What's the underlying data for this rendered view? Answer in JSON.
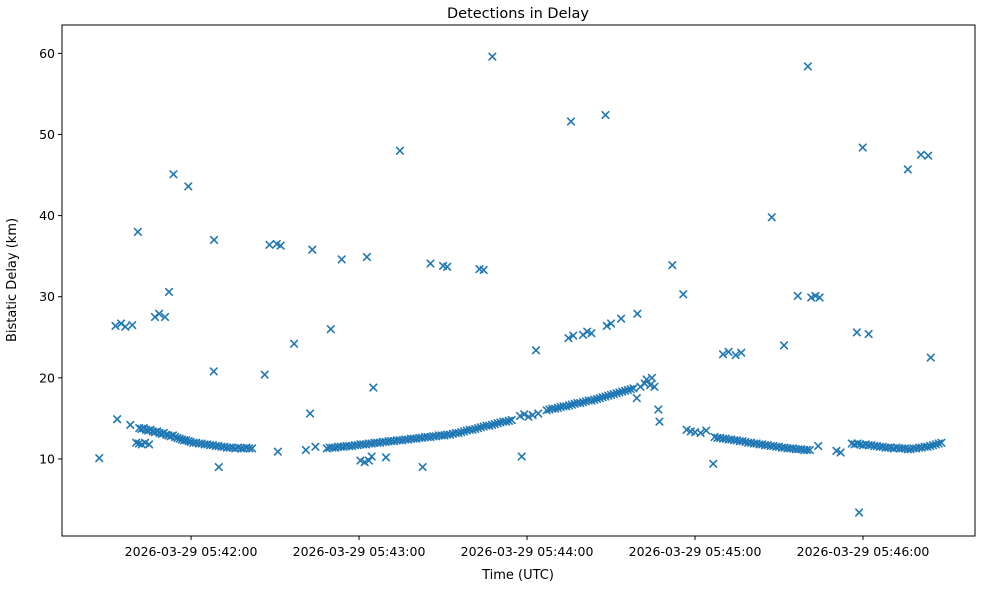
{
  "chart_data": {
    "type": "scatter",
    "title": "Detections in Delay",
    "xlabel": "Time (UTC)",
    "ylabel": "Bistatic Delay (km)",
    "marker": "x",
    "marker_color": "#1f77b4",
    "background_color": "#ffffff",
    "grid": false,
    "legend": false,
    "x_axis": {
      "tick_labels": [
        "2026-03-29 05:42:00",
        "2026-03-29 05:43:00",
        "2026-03-29 05:44:00",
        "2026-03-29 05:45:00",
        "2026-03-29 05:46:00"
      ],
      "tick_seconds": [
        0,
        60,
        120,
        180,
        240
      ],
      "range_seconds": [
        -46.1,
        280
      ],
      "units": "seconds relative to first labeled tick 2026-03-29 05:42:00"
    },
    "y_axis": {
      "ticks": [
        10,
        20,
        30,
        40,
        50,
        60
      ],
      "range": [
        0.5,
        63.5
      ]
    },
    "points": [
      [
        -18.5,
        13.8
      ],
      [
        -17.7,
        13.7
      ],
      [
        -16.9,
        13.8
      ],
      [
        -16.1,
        13.6
      ],
      [
        -15.3,
        13.5
      ],
      [
        -14.5,
        13.6
      ],
      [
        -13.7,
        13.4
      ],
      [
        -12.9,
        13.3
      ],
      [
        -12.1,
        13.4
      ],
      [
        -11.3,
        13.2
      ],
      [
        -10.5,
        13.1
      ],
      [
        -9.7,
        13.2
      ],
      [
        -8.9,
        13.0
      ],
      [
        -8.1,
        12.9
      ],
      [
        -7.3,
        12.8
      ],
      [
        -6.5,
        12.9
      ],
      [
        -5.7,
        12.7
      ],
      [
        -4.9,
        12.6
      ],
      [
        -4.1,
        12.5
      ],
      [
        -3.3,
        12.4
      ],
      [
        -2.5,
        12.3
      ],
      [
        -1.7,
        12.3
      ],
      [
        -0.9,
        12.2
      ],
      [
        -0.1,
        12.1
      ],
      [
        0.8,
        12.0
      ],
      [
        1.8,
        12.0
      ],
      [
        2.8,
        11.9
      ],
      [
        3.8,
        11.9
      ],
      [
        4.8,
        11.8
      ],
      [
        5.8,
        11.8
      ],
      [
        6.8,
        11.7
      ],
      [
        7.8,
        11.7
      ],
      [
        8.8,
        11.6
      ],
      [
        9.8,
        11.6
      ],
      [
        10.8,
        11.5
      ],
      [
        11.8,
        11.5
      ],
      [
        12.8,
        11.4
      ],
      [
        13.8,
        11.4
      ],
      [
        14.8,
        11.4
      ],
      [
        15.8,
        11.3
      ],
      [
        16.8,
        11.4
      ],
      [
        17.8,
        11.3
      ],
      [
        18.8,
        11.3
      ],
      [
        19.8,
        11.4
      ],
      [
        20.8,
        11.3
      ],
      [
        21.8,
        11.3
      ],
      [
        -19.6,
        12.0
      ],
      [
        -18.6,
        11.9
      ],
      [
        -17.6,
        11.8
      ],
      [
        -16.4,
        12.0
      ],
      [
        -15.0,
        11.8
      ],
      [
        31,
        10.9
      ],
      [
        41,
        11.1
      ],
      [
        44.4,
        11.5
      ],
      [
        48.5,
        11.3
      ],
      [
        49.5,
        11.4
      ],
      [
        50.5,
        11.4
      ],
      [
        51.5,
        11.4
      ],
      [
        52.5,
        11.5
      ],
      [
        53.5,
        11.5
      ],
      [
        54.5,
        11.5
      ],
      [
        55.5,
        11.6
      ],
      [
        56.5,
        11.6
      ],
      [
        57.5,
        11.6
      ],
      [
        58.5,
        11.7
      ],
      [
        59.5,
        11.7
      ],
      [
        60.5,
        11.8
      ],
      [
        61.5,
        11.8
      ],
      [
        62.5,
        11.8
      ],
      [
        63.5,
        11.9
      ],
      [
        64.5,
        11.9
      ],
      [
        65.5,
        12.0
      ],
      [
        66.5,
        12.0
      ],
      [
        67.5,
        12.0
      ],
      [
        68.5,
        12.1
      ],
      [
        69.5,
        12.1
      ],
      [
        70.5,
        12.2
      ],
      [
        71.5,
        12.2
      ],
      [
        72.5,
        12.2
      ],
      [
        73.5,
        12.3
      ],
      [
        74.5,
        12.3
      ],
      [
        75.5,
        12.3
      ],
      [
        76.5,
        12.4
      ],
      [
        77.5,
        12.4
      ],
      [
        78.5,
        12.5
      ],
      [
        79.5,
        12.5
      ],
      [
        80.5,
        12.5
      ],
      [
        81.5,
        12.6
      ],
      [
        82.5,
        12.6
      ],
      [
        83.5,
        12.7
      ],
      [
        84.5,
        12.7
      ],
      [
        85.5,
        12.7
      ],
      [
        86.5,
        12.8
      ],
      [
        87.5,
        12.8
      ],
      [
        88.5,
        12.9
      ],
      [
        89.5,
        12.9
      ],
      [
        90.5,
        12.9
      ],
      [
        91.5,
        13.0
      ],
      [
        92.5,
        13.0
      ],
      [
        93.5,
        13.1
      ],
      [
        94.5,
        13.2
      ],
      [
        95.5,
        13.2
      ],
      [
        96.5,
        13.3
      ],
      [
        97.5,
        13.4
      ],
      [
        98.5,
        13.5
      ],
      [
        99.5,
        13.6
      ],
      [
        100.5,
        13.6
      ],
      [
        101.5,
        13.7
      ],
      [
        102.5,
        13.8
      ],
      [
        103.5,
        13.9
      ],
      [
        104.5,
        14.0
      ],
      [
        105.5,
        14.1
      ],
      [
        106.5,
        14.1
      ],
      [
        107.5,
        14.2
      ],
      [
        108.5,
        14.3
      ],
      [
        109.5,
        14.4
      ],
      [
        110.5,
        14.5
      ],
      [
        111.5,
        14.6
      ],
      [
        112.5,
        14.6
      ],
      [
        113.5,
        14.7
      ],
      [
        114.5,
        14.8
      ],
      [
        117.5,
        15.3
      ],
      [
        119,
        15.5
      ],
      [
        120.5,
        15.2
      ],
      [
        122,
        15.4
      ],
      [
        124,
        15.6
      ],
      [
        127,
        16.0
      ],
      [
        128,
        16.1
      ],
      [
        129,
        16.2
      ],
      [
        130,
        16.2
      ],
      [
        131,
        16.3
      ],
      [
        132,
        16.4
      ],
      [
        133,
        16.5
      ],
      [
        134,
        16.5
      ],
      [
        135,
        16.6
      ],
      [
        136,
        16.7
      ],
      [
        137,
        16.8
      ],
      [
        138,
        16.9
      ],
      [
        139,
        16.9
      ],
      [
        140,
        17.0
      ],
      [
        141,
        17.1
      ],
      [
        142,
        17.2
      ],
      [
        143,
        17.2
      ],
      [
        144,
        17.3
      ],
      [
        145,
        17.4
      ],
      [
        146,
        17.5
      ],
      [
        147,
        17.6
      ],
      [
        148,
        17.7
      ],
      [
        149,
        17.8
      ],
      [
        150,
        17.9
      ],
      [
        151,
        18.0
      ],
      [
        152,
        18.1
      ],
      [
        153,
        18.2
      ],
      [
        154,
        18.3
      ],
      [
        155,
        18.4
      ],
      [
        156,
        18.5
      ],
      [
        157,
        18.6
      ],
      [
        158,
        18.7
      ],
      [
        159.2,
        17.5
      ],
      [
        160.5,
        18.9
      ],
      [
        162,
        19.3
      ],
      [
        162.7,
        19.8
      ],
      [
        164,
        19.1
      ],
      [
        164.6,
        20.0
      ],
      [
        165.5,
        18.9
      ],
      [
        166.9,
        16.1
      ],
      [
        167.3,
        14.6
      ],
      [
        177,
        13.6
      ],
      [
        178.5,
        13.4
      ],
      [
        180,
        13.3
      ],
      [
        182,
        13.2
      ],
      [
        184,
        13.5
      ],
      [
        187,
        12.7
      ],
      [
        188,
        12.6
      ],
      [
        189,
        12.6
      ],
      [
        190,
        12.5
      ],
      [
        191,
        12.5
      ],
      [
        192,
        12.4
      ],
      [
        193,
        12.4
      ],
      [
        194,
        12.3
      ],
      [
        195,
        12.3
      ],
      [
        196,
        12.2
      ],
      [
        197,
        12.2
      ],
      [
        198,
        12.1
      ],
      [
        199,
        12.0
      ],
      [
        200,
        12.0
      ],
      [
        201,
        11.9
      ],
      [
        202,
        11.9
      ],
      [
        203,
        11.8
      ],
      [
        204,
        11.8
      ],
      [
        205,
        11.7
      ],
      [
        206,
        11.7
      ],
      [
        207,
        11.6
      ],
      [
        208,
        11.6
      ],
      [
        209,
        11.5
      ],
      [
        210,
        11.5
      ],
      [
        211,
        11.4
      ],
      [
        212,
        11.4
      ],
      [
        213,
        11.3
      ],
      [
        214,
        11.3
      ],
      [
        215,
        11.3
      ],
      [
        216,
        11.2
      ],
      [
        217,
        11.2
      ],
      [
        218,
        11.2
      ],
      [
        219,
        11.1
      ],
      [
        220,
        11.1
      ],
      [
        221,
        11.1
      ],
      [
        224,
        11.6
      ],
      [
        230.5,
        11.0
      ],
      [
        232,
        10.8
      ],
      [
        236,
        11.9
      ],
      [
        237,
        11.8
      ],
      [
        238,
        11.9
      ],
      [
        239,
        11.8
      ],
      [
        240,
        11.7
      ],
      [
        241,
        11.8
      ],
      [
        242,
        11.7
      ],
      [
        243,
        11.7
      ],
      [
        244,
        11.6
      ],
      [
        245,
        11.6
      ],
      [
        246,
        11.5
      ],
      [
        247,
        11.5
      ],
      [
        248,
        11.4
      ],
      [
        249,
        11.4
      ],
      [
        250,
        11.4
      ],
      [
        251,
        11.3
      ],
      [
        252,
        11.4
      ],
      [
        253,
        11.3
      ],
      [
        254,
        11.3
      ],
      [
        255,
        11.3
      ],
      [
        256,
        11.2
      ],
      [
        257,
        11.2
      ],
      [
        258,
        11.3
      ],
      [
        259,
        11.3
      ],
      [
        260,
        11.4
      ],
      [
        261,
        11.4
      ],
      [
        262,
        11.5
      ],
      [
        263,
        11.5
      ],
      [
        264,
        11.6
      ],
      [
        265,
        11.7
      ],
      [
        266,
        11.8
      ],
      [
        267,
        11.9
      ],
      [
        268,
        12.0
      ],
      [
        -32.8,
        10.1
      ],
      [
        -27,
        26.4
      ],
      [
        -25,
        26.7
      ],
      [
        -23.5,
        26.3
      ],
      [
        -21,
        26.5
      ],
      [
        -26.4,
        14.9
      ],
      [
        -21.7,
        14.2
      ],
      [
        -19,
        38.0
      ],
      [
        -12.9,
        27.5
      ],
      [
        -11.4,
        27.9
      ],
      [
        -9.3,
        27.5
      ],
      [
        -7.9,
        30.6
      ],
      [
        -6.3,
        45.1
      ],
      [
        -1,
        43.6
      ],
      [
        8.1,
        20.8
      ],
      [
        8.2,
        37.0
      ],
      [
        9.9,
        9.0
      ],
      [
        26.3,
        20.4
      ],
      [
        28,
        36.4
      ],
      [
        30.6,
        36.5
      ],
      [
        32,
        36.3
      ],
      [
        36.8,
        24.2
      ],
      [
        42.5,
        15.6
      ],
      [
        43.3,
        35.8
      ],
      [
        49.9,
        26.0
      ],
      [
        53.8,
        34.6
      ],
      [
        60.5,
        9.8
      ],
      [
        62,
        9.6
      ],
      [
        63.5,
        9.8
      ],
      [
        62.8,
        34.9
      ],
      [
        64.5,
        10.3
      ],
      [
        69.6,
        10.2
      ],
      [
        65.1,
        18.8
      ],
      [
        74.6,
        48.0
      ],
      [
        82.7,
        9.0
      ],
      [
        85.5,
        34.1
      ],
      [
        90,
        33.8
      ],
      [
        91.5,
        33.7
      ],
      [
        103,
        33.4
      ],
      [
        104.5,
        33.3
      ],
      [
        107.6,
        59.6
      ],
      [
        118.1,
        10.3
      ],
      [
        123.2,
        23.4
      ],
      [
        134.8,
        24.9
      ],
      [
        136.5,
        25.2
      ],
      [
        135.7,
        51.6
      ],
      [
        140,
        25.3
      ],
      [
        141.5,
        25.7
      ],
      [
        143,
        25.5
      ],
      [
        148,
        52.4
      ],
      [
        148.5,
        26.4
      ],
      [
        150,
        26.7
      ],
      [
        153.6,
        27.3
      ],
      [
        159.4,
        27.9
      ],
      [
        171.9,
        33.9
      ],
      [
        175.8,
        30.3
      ],
      [
        186.5,
        9.4
      ],
      [
        190,
        22.9
      ],
      [
        192,
        23.2
      ],
      [
        194.5,
        22.8
      ],
      [
        196.5,
        23.1
      ],
      [
        207.4,
        39.8
      ],
      [
        211.8,
        24.0
      ],
      [
        216.7,
        30.1
      ],
      [
        220.3,
        58.4
      ],
      [
        221.5,
        29.9
      ],
      [
        223,
        30.1
      ],
      [
        224.5,
        29.9
      ],
      [
        237.8,
        25.6
      ],
      [
        242,
        25.4
      ],
      [
        238.6,
        3.4
      ],
      [
        239.9,
        48.4
      ],
      [
        256,
        45.7
      ],
      [
        260.7,
        47.5
      ],
      [
        263.3,
        47.4
      ],
      [
        264.2,
        22.5
      ]
    ]
  }
}
